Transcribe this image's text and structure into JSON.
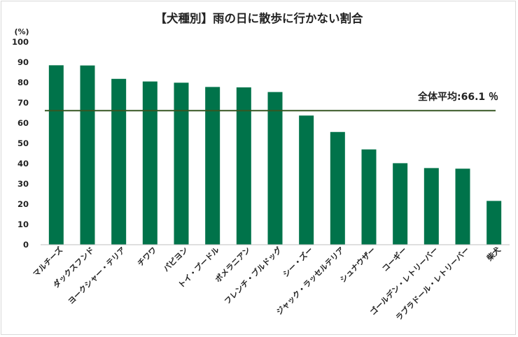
{
  "chart_data": {
    "type": "bar",
    "title": "【犬種別】雨の日に散歩に行かない割合",
    "yunit": "(%)",
    "ylim": [
      0,
      100
    ],
    "ytick_step": 10,
    "grid": false,
    "bar_color": "#00734a",
    "categories": [
      "マルチーズ",
      "ダックスフンド",
      "ヨークシャー・テリア",
      "チワワ",
      "パピヨン",
      "トイ・プードル",
      "ポメラニアン",
      "フレンチ・ブルドッグ",
      "シー・ズー",
      "ジャック・ラッセルテリア",
      "シュナウザー",
      "コーギー",
      "ゴールデン・レトリーバー",
      "ラブラドール・レトリーバー",
      "柴犬"
    ],
    "values": [
      88.5,
      88.4,
      81.8,
      80.5,
      79.9,
      77.8,
      77.6,
      75.3,
      63.7,
      55.6,
      47.0,
      40.2,
      37.8,
      37.5,
      21.6
    ],
    "average": {
      "label": "全体平均:66.1 ％",
      "value": 66.1,
      "color": "#375623"
    }
  }
}
